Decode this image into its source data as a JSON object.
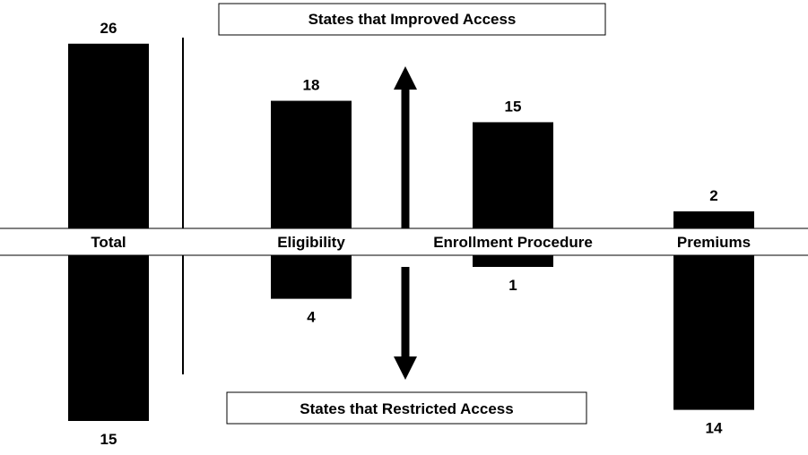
{
  "chart_data": {
    "type": "bar",
    "categories": [
      "Total",
      "Eligibility",
      "Enrollment Procedure",
      "Premiums"
    ],
    "series": [
      {
        "name": "States that Improved Access",
        "values": [
          26,
          18,
          15,
          2
        ]
      },
      {
        "name": "States that Restricted Access",
        "values": [
          15,
          4,
          1,
          14
        ]
      }
    ],
    "top_label": "States that Improved Access",
    "bottom_label": "States that Restricted Access",
    "title": "",
    "xlabel": "",
    "ylabel": "",
    "grid": false,
    "bar_color": "#000000"
  }
}
